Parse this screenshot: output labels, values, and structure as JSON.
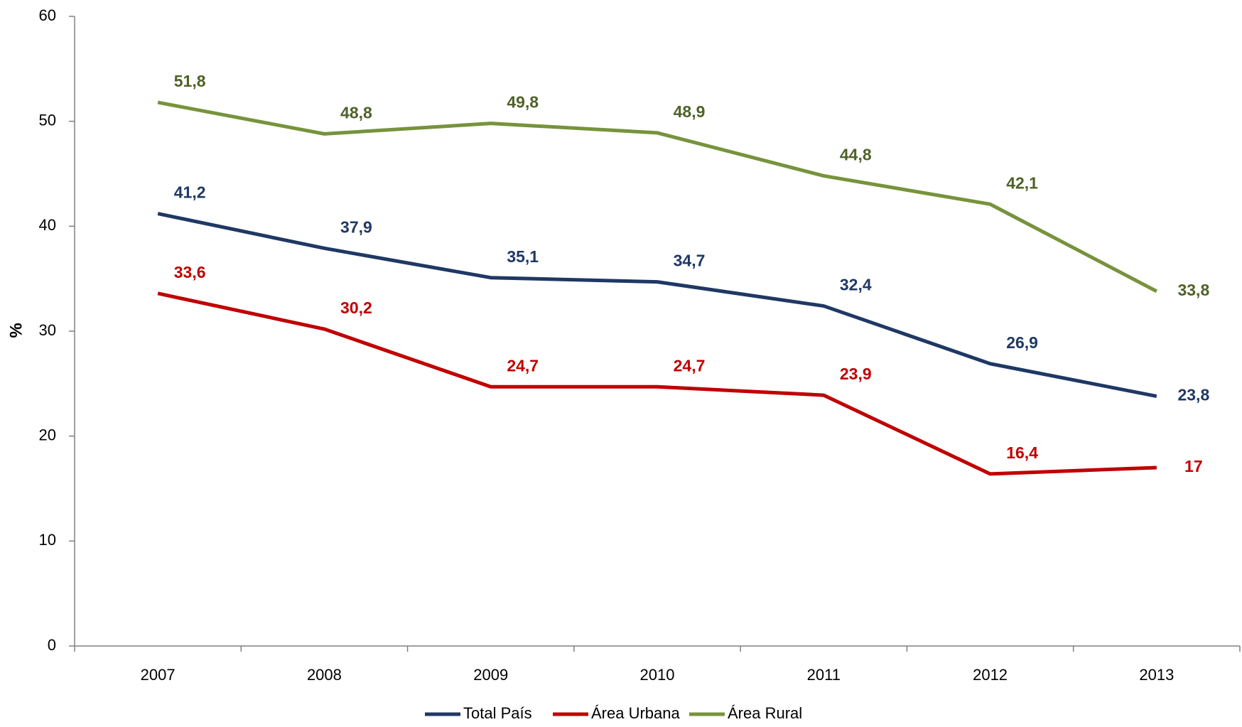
{
  "chart_data": {
    "type": "line",
    "y_label": "%",
    "categories": [
      "2007",
      "2008",
      "2009",
      "2010",
      "2011",
      "2012",
      "2013"
    ],
    "series": [
      {
        "name": "Total País",
        "color": "#1f3864",
        "label_color": "#1f3864",
        "values": [
          41.2,
          37.9,
          35.1,
          34.7,
          32.4,
          26.9,
          23.8
        ],
        "value_labels": [
          "41,2",
          "37,9",
          "35,1",
          "34,7",
          "32,4",
          "26,9",
          "23,8"
        ]
      },
      {
        "name": "Área Urbana",
        "color": "#c00000",
        "label_color": "#c00000",
        "values": [
          33.6,
          30.2,
          24.7,
          24.7,
          23.9,
          16.4,
          17
        ],
        "value_labels": [
          "33,6",
          "30,2",
          "24,7",
          "24,7",
          "23,9",
          "16,4",
          "17"
        ]
      },
      {
        "name": "Área Rural",
        "color": "#77933c",
        "label_color": "#4f6228",
        "values": [
          51.8,
          48.8,
          49.8,
          48.9,
          44.8,
          42.1,
          33.8
        ],
        "value_labels": [
          "51,8",
          "48,8",
          "49,8",
          "48,9",
          "44,8",
          "42,1",
          "33,8"
        ]
      }
    ],
    "ylim": [
      0,
      60
    ],
    "yticks": [
      0,
      10,
      20,
      30,
      40,
      50,
      60
    ],
    "grid": false,
    "legend": "bottom"
  }
}
